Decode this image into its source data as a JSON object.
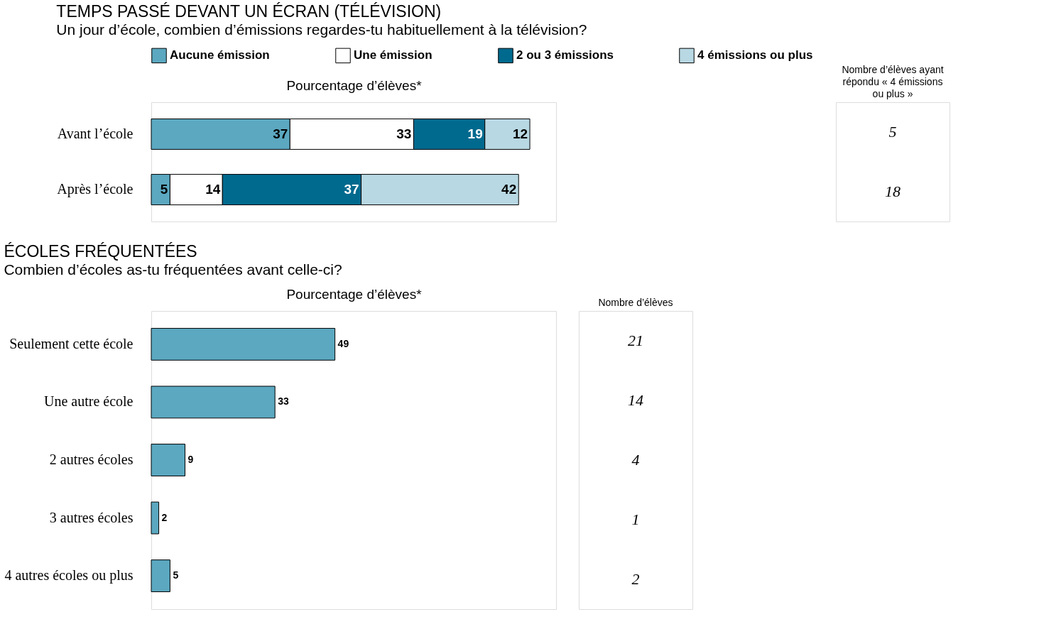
{
  "chart_data": [
    {
      "type": "bar",
      "orientation": "horizontal",
      "stacked": true,
      "title": "TEMPS PASSÉ DEVANT UN ÉCRAN (TÉLÉVISION)",
      "subtitle": "Un jour d’école, combien d’émissions regardes-tu habituellement à la télévision?",
      "xlabel": "Pourcentage d’élèves*",
      "categories": [
        "Avant l’école",
        "Après l’école"
      ],
      "xlim": [
        0,
        108
      ],
      "tick_labels": "y",
      "data_labels": true,
      "legend": "top",
      "series": [
        {
          "name": "Aucune émission",
          "color": "#5ba8c0",
          "values": [
            37,
            5
          ]
        },
        {
          "name": "Une émission",
          "color": "#ffffff",
          "values": [
            33,
            14
          ]
        },
        {
          "name": "2 ou 3 émissions",
          "color": "#006a8e",
          "values": [
            19,
            37
          ]
        },
        {
          "name": "4 émissions ou plus",
          "color": "#b8d8e3",
          "values": [
            12,
            42
          ]
        }
      ],
      "annotations": [
        "Nombre d’élèves ayant répondu « 4 émissions ou plus »",
        "5",
        "18"
      ]
    },
    {
      "type": "bar",
      "orientation": "horizontal",
      "title": "ÉCOLES FRÉQUENTÉES",
      "subtitle": "Combien d’écoles as-tu fréquentées avant celle-ci?",
      "xlabel": "Pourcentage d’élèves*",
      "categories": [
        "Seulement cette école",
        "Une autre école",
        "2 autres écoles",
        "3 autres écoles",
        "4 autres écoles ou plus"
      ],
      "xlim": [
        0,
        108
      ],
      "tick_labels": "y",
      "data_labels": true,
      "color": "#5ba8c0",
      "values": [
        49,
        33,
        9,
        2,
        5
      ],
      "annotations": [
        "Nombre d’élèves",
        "21",
        "14",
        "4",
        "1",
        "2"
      ]
    }
  ]
}
